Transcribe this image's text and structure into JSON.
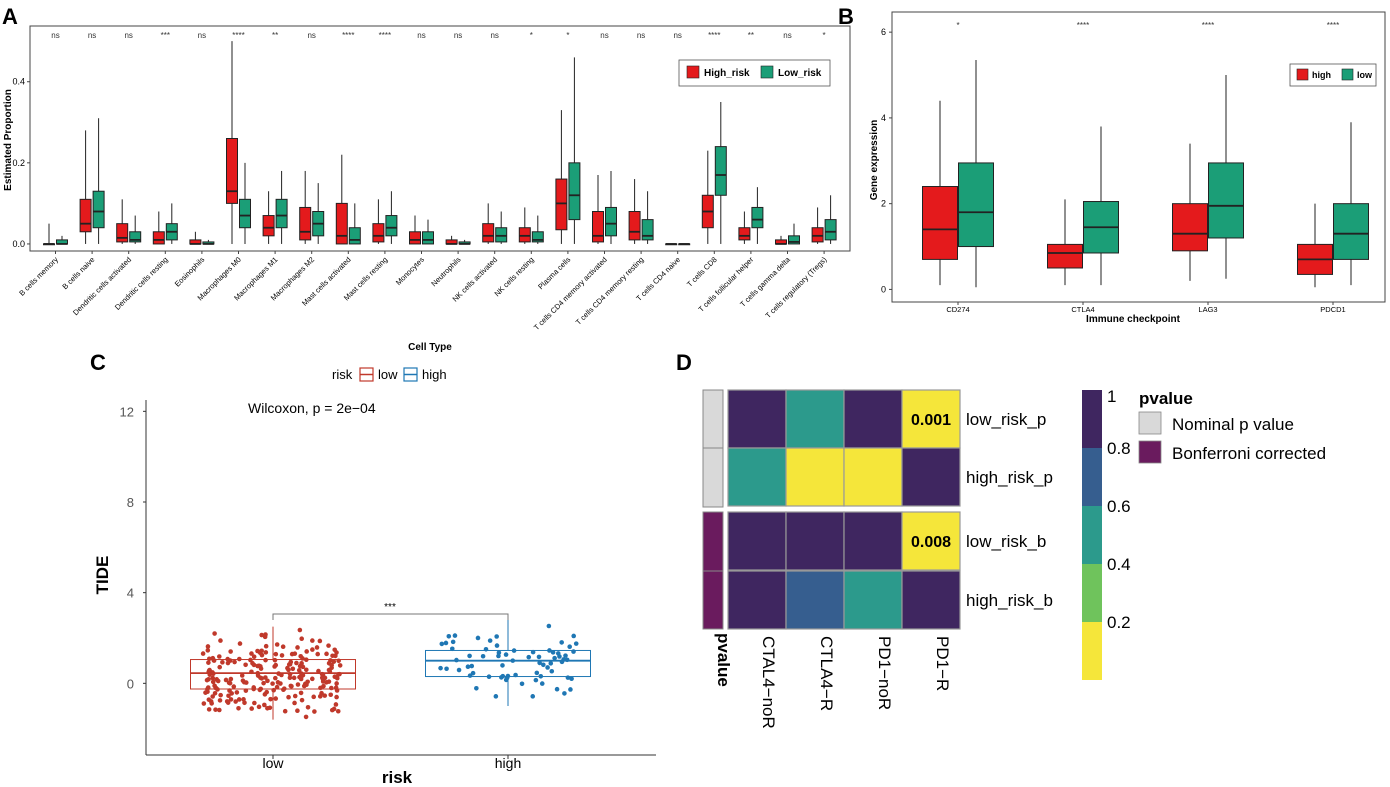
{
  "panels": {
    "A": {
      "label": "A",
      "chart_data": {
        "type": "box",
        "title": "",
        "xlabel": "Cell Type",
        "ylabel": "Estimated Proportion",
        "ylim": [
          -0.01,
          0.53
        ],
        "yticks": [
          0.0,
          0.2,
          0.4
        ],
        "ytick_labels": [
          "0.0",
          "0.2",
          "0.4"
        ],
        "legend": {
          "position": "top-right",
          "entries": [
            "High_risk",
            "Low_risk"
          ]
        },
        "colors": {
          "High_risk": "#e41a1c",
          "Low_risk": "#1b9e77"
        },
        "categories": [
          "B cells memory",
          "B cells naive",
          "Dendritic cells activated",
          "Dendritic cells resting",
          "Eosinophils",
          "Macrophages M0",
          "Macrophages M1",
          "Macrophages M2",
          "Mast cells activated",
          "Mast cells resting",
          "Monocytes",
          "Neutrophils",
          "NK cells activated",
          "NK cells resting",
          "Plasma cells",
          "T cells CD4 memory activated",
          "T cells CD4 memory resting",
          "T cells CD4 naive",
          "T cells CD8",
          "T cells follicular helper",
          "T cells gamma delta",
          "T cells regulatory (Tregs)"
        ],
        "significance": [
          "ns",
          "ns",
          "ns",
          "***",
          "ns",
          "****",
          "**",
          "ns",
          "****",
          "****",
          "ns",
          "ns",
          "ns",
          "*",
          "*",
          "ns",
          "ns",
          "ns",
          "****",
          "**",
          "ns",
          "*"
        ],
        "series": [
          {
            "name": "High_risk",
            "stats": [
              [
                0,
                0,
                0,
                0,
                0.05
              ],
              [
                0,
                0.03,
                0.05,
                0.11,
                0.28
              ],
              [
                0,
                0.005,
                0.015,
                0.05,
                0.11
              ],
              [
                0,
                0,
                0.01,
                0.03,
                0.08
              ],
              [
                0,
                0,
                0,
                0.01,
                0.03
              ],
              [
                0,
                0.1,
                0.13,
                0.26,
                0.5
              ],
              [
                0,
                0.02,
                0.04,
                0.07,
                0.13
              ],
              [
                0,
                0.01,
                0.03,
                0.09,
                0.18
              ],
              [
                0,
                0,
                0.02,
                0.1,
                0.22
              ],
              [
                0,
                0.005,
                0.02,
                0.05,
                0.11
              ],
              [
                0,
                0,
                0.01,
                0.03,
                0.07
              ],
              [
                0,
                0,
                0,
                0.01,
                0.02
              ],
              [
                0,
                0.005,
                0.02,
                0.05,
                0.1
              ],
              [
                0,
                0.005,
                0.02,
                0.04,
                0.09
              ],
              [
                0,
                0.035,
                0.1,
                0.16,
                0.33
              ],
              [
                0,
                0.005,
                0.02,
                0.08,
                0.17
              ],
              [
                0,
                0.01,
                0.03,
                0.08,
                0.16
              ],
              [
                0,
                0,
                0,
                0,
                0
              ],
              [
                0,
                0.04,
                0.08,
                0.12,
                0.23
              ],
              [
                0,
                0.01,
                0.02,
                0.04,
                0.08
              ],
              [
                0,
                0,
                0,
                0.01,
                0.02
              ],
              [
                0,
                0.005,
                0.02,
                0.04,
                0.09
              ]
            ]
          },
          {
            "name": "Low_risk",
            "stats": [
              [
                0,
                0,
                0,
                0.01,
                0.02
              ],
              [
                0,
                0.04,
                0.08,
                0.13,
                0.31
              ],
              [
                0,
                0.005,
                0.01,
                0.03,
                0.07
              ],
              [
                0,
                0.01,
                0.03,
                0.05,
                0.1
              ],
              [
                0,
                0,
                0,
                0.005,
                0.01
              ],
              [
                0,
                0.04,
                0.07,
                0.11,
                0.2
              ],
              [
                0,
                0.04,
                0.07,
                0.11,
                0.18
              ],
              [
                0,
                0.02,
                0.05,
                0.08,
                0.15
              ],
              [
                0,
                0,
                0.01,
                0.04,
                0.1
              ],
              [
                0,
                0.02,
                0.04,
                0.07,
                0.13
              ],
              [
                0,
                0,
                0.01,
                0.03,
                0.06
              ],
              [
                0,
                0,
                0,
                0.005,
                0.01
              ],
              [
                0,
                0.005,
                0.02,
                0.04,
                0.08
              ],
              [
                0,
                0.005,
                0.01,
                0.03,
                0.07
              ],
              [
                0,
                0.06,
                0.12,
                0.2,
                0.46
              ],
              [
                0,
                0.02,
                0.05,
                0.09,
                0.18
              ],
              [
                0,
                0.01,
                0.02,
                0.06,
                0.13
              ],
              [
                0,
                0,
                0,
                0,
                0
              ],
              [
                0,
                0.12,
                0.17,
                0.24,
                0.35
              ],
              [
                0,
                0.04,
                0.06,
                0.09,
                0.14
              ],
              [
                0,
                0,
                0.005,
                0.02,
                0.05
              ],
              [
                0,
                0.01,
                0.03,
                0.06,
                0.12
              ]
            ]
          }
        ]
      }
    },
    "B": {
      "label": "B",
      "chart_data": {
        "type": "box",
        "xlabel": "Immune checkpoint",
        "ylabel": "Gene expression",
        "ylim": [
          -0.2,
          6.4
        ],
        "yticks": [
          0,
          2,
          4,
          6
        ],
        "ytick_labels": [
          "0",
          "2",
          "4",
          "6"
        ],
        "legend": {
          "position": "top-right",
          "entries": [
            "high",
            "low"
          ]
        },
        "colors": {
          "high": "#e41a1c",
          "low": "#1b9e77"
        },
        "categories": [
          "CD274",
          "CTLA4",
          "LAG3",
          "PDCD1"
        ],
        "significance": [
          "*",
          "****",
          "****",
          "****"
        ],
        "series": [
          {
            "name": "high",
            "stats": [
              [
                0.1,
                0.7,
                1.4,
                2.4,
                4.4
              ],
              [
                0.1,
                0.5,
                0.85,
                1.05,
                2.1
              ],
              [
                0.2,
                0.9,
                1.3,
                2.0,
                3.4
              ],
              [
                0.05,
                0.35,
                0.7,
                1.05,
                2.0
              ]
            ]
          },
          {
            "name": "low",
            "stats": [
              [
                0.05,
                1.0,
                1.8,
                2.95,
                5.35
              ],
              [
                0.1,
                0.85,
                1.45,
                2.05,
                3.8
              ],
              [
                0.25,
                1.2,
                1.95,
                2.95,
                5.0
              ],
              [
                0.1,
                0.7,
                1.3,
                2.0,
                3.9
              ]
            ]
          }
        ]
      }
    },
    "C": {
      "label": "C",
      "chart_data": {
        "type": "box",
        "xlabel": "risk",
        "ylabel": "TIDE",
        "ylim": [
          -2.5,
          12.5
        ],
        "yticks": [
          0,
          4,
          8,
          12
        ],
        "ytick_labels": [
          "0",
          "4",
          "8",
          "12"
        ],
        "legend": {
          "position": "top",
          "title": "risk",
          "entries": [
            "low",
            "high"
          ]
        },
        "annotation": "Wilcoxon, p = 2e−04",
        "bracket_label": "***",
        "colors": {
          "low": "#c0392b",
          "high": "#1f77b4"
        },
        "categories": [
          "low",
          "high"
        ],
        "series": [
          {
            "name": "low",
            "stats": [
              -1.6,
              -0.25,
              0.45,
              1.05,
              2.5
            ]
          },
          {
            "name": "high",
            "stats": [
              -1.0,
              0.3,
              1.0,
              1.45,
              2.85
            ]
          }
        ]
      }
    },
    "D": {
      "label": "D",
      "chart_data": {
        "type": "heatmap",
        "columns": [
          "CTAL4−noR",
          "CTLA4−R",
          "PD1−noR",
          "PD1−R"
        ],
        "rows": [
          "low_risk_p",
          "high_risk_p",
          "low_risk_b",
          "high_risk_b"
        ],
        "values": [
          [
            0.95,
            0.5,
            0.95,
            0.001
          ],
          [
            0.5,
            0.1,
            0.1,
            0.95
          ],
          [
            0.95,
            0.95,
            0.95,
            0.008
          ],
          [
            0.95,
            0.7,
            0.5,
            0.95
          ]
        ],
        "cell_labels": [
          [
            "",
            "",
            "",
            "0.001"
          ],
          [
            "",
            "",
            "",
            ""
          ],
          [
            "",
            "",
            "",
            "0.008"
          ],
          [
            "",
            "",
            "",
            ""
          ]
        ],
        "annotation_title": "pvalue",
        "annotation_entries": [
          "Nominal p value",
          "Bonferroni corrected"
        ],
        "annotation_colors": {
          "Nominal p value": "#d9d9d9",
          "Bonferroni corrected": "#6a1b5e"
        },
        "colorbar_ticks": [
          1,
          0.8,
          0.6,
          0.4,
          0.2
        ],
        "colorbar_tick_labels": [
          "1",
          "0.8",
          "0.6",
          "0.4",
          "0.2"
        ]
      }
    }
  }
}
